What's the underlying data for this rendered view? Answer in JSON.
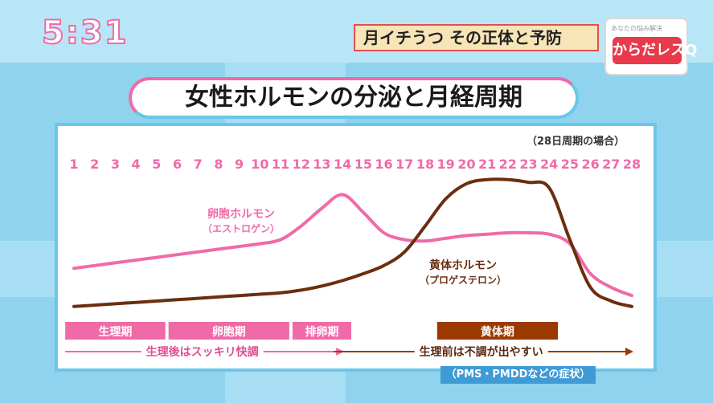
{
  "clock": "5:31",
  "topic": "月イチうつ その正体と予防",
  "logo": {
    "top": "あなたの悩み解決",
    "main": "からだレスQ"
  },
  "note": "（28日周期の場合）",
  "pms": "（PMS・PMDDなどの症状）",
  "colors": {
    "pink": "#f06aa8",
    "brown": "#6b2e10",
    "phase_brown": "#9b3a00",
    "sky": "#8fd3ef"
  },
  "chart_data": {
    "type": "line",
    "title": "女性ホルモンの分泌と月経周期",
    "x": [
      1,
      2,
      3,
      4,
      5,
      6,
      7,
      8,
      9,
      10,
      11,
      12,
      13,
      14,
      15,
      16,
      17,
      18,
      19,
      20,
      21,
      22,
      23,
      24,
      25,
      26,
      27,
      28
    ],
    "x_labels": [
      "1",
      "2",
      "3",
      "4",
      "5",
      "6",
      "7",
      "8",
      "9",
      "10",
      "11",
      "12",
      "13",
      "14",
      "15",
      "16",
      "17",
      "18",
      "19",
      "20",
      "21",
      "22",
      "23",
      "24",
      "25",
      "26",
      "27",
      "28"
    ],
    "ylim": [
      0,
      100
    ],
    "series": [
      {
        "name": "卵胞ホルモン",
        "subname": "（エストロゲン）",
        "color": "#f06aa8",
        "values": [
          34,
          36,
          38,
          40,
          42,
          44,
          46,
          48,
          50,
          52,
          55,
          65,
          78,
          88,
          75,
          60,
          55,
          54,
          56,
          58,
          59,
          60,
          60,
          59,
          52,
          30,
          20,
          14
        ]
      },
      {
        "name": "黄体ホルモン",
        "subname": "（プロゲステロン）",
        "color": "#6b2e10",
        "values": [
          6,
          7,
          8,
          9,
          10,
          11,
          12,
          13,
          14,
          15,
          16,
          18,
          21,
          25,
          30,
          36,
          46,
          65,
          85,
          96,
          99,
          99,
          97,
          93,
          55,
          20,
          10,
          6
        ]
      }
    ],
    "phases": [
      {
        "label": "生理期",
        "start": 1,
        "end": 5,
        "color": "#f06aa8"
      },
      {
        "label": "卵胞期",
        "start": 6,
        "end": 11,
        "color": "#f06aa8"
      },
      {
        "label": "排卵期",
        "start": 12,
        "end": 14,
        "color": "#f06aa8"
      },
      {
        "label": "黄体期",
        "start": 19,
        "end": 24,
        "color": "#9b3a00"
      }
    ],
    "arrows": [
      {
        "label": "生理後はスッキリ快調",
        "start": 1,
        "end": 14,
        "color": "#f06aa8"
      },
      {
        "label": "生理前は不調が出やすい",
        "start": 14,
        "end": 28,
        "color": "#9b3a00"
      }
    ]
  }
}
